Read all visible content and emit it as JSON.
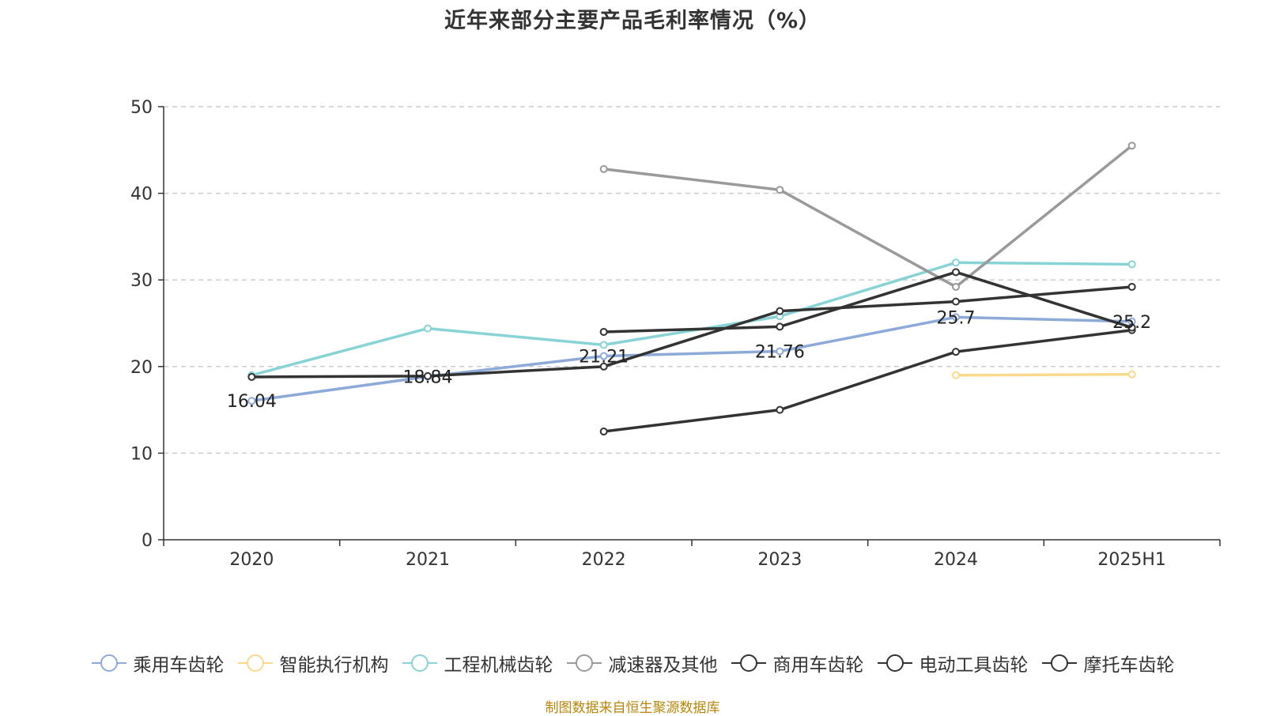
{
  "chart_data": {
    "type": "line",
    "title": "近年来部分主要产品毛利率情况（%）",
    "source": "制图数据来自恒生聚源数据库",
    "categories": [
      "2020",
      "2021",
      "2022",
      "2023",
      "2024",
      "2025H1"
    ],
    "ylim": [
      0,
      50
    ],
    "yticks": [
      0,
      10,
      20,
      30,
      40,
      50
    ],
    "grid": true,
    "legend_position": "bottom",
    "series": [
      {
        "name": "乘用车齿轮",
        "color": "#8eaad8",
        "values": [
          16.04,
          18.84,
          21.21,
          21.76,
          25.7,
          25.2
        ],
        "labels": [
          "16.04",
          "18.84",
          "21.21",
          "21.76",
          "25.7",
          "25.2"
        ]
      },
      {
        "name": "智能执行机构",
        "color": "#fbd98c",
        "values": [
          null,
          null,
          null,
          null,
          19.0,
          19.1
        ]
      },
      {
        "name": "工程机械齿轮",
        "color": "#88d3d5",
        "values": [
          19.0,
          24.4,
          22.5,
          25.8,
          32.0,
          31.8
        ]
      },
      {
        "name": "减速器及其他",
        "color": "#9a9a9a",
        "values": [
          null,
          null,
          42.8,
          40.4,
          29.2,
          45.5
        ]
      },
      {
        "name": "商用车齿轮",
        "color": "#333333",
        "values": [
          18.8,
          18.9,
          20.0,
          26.4,
          27.5,
          29.2
        ]
      },
      {
        "name": "电动工具齿轮",
        "color": "#333333",
        "values": [
          null,
          null,
          12.5,
          15.0,
          21.7,
          24.2
        ]
      },
      {
        "name": "摩托车齿轮",
        "color": "#333333",
        "values": [
          null,
          null,
          24.0,
          24.6,
          30.9,
          24.5
        ]
      }
    ]
  }
}
